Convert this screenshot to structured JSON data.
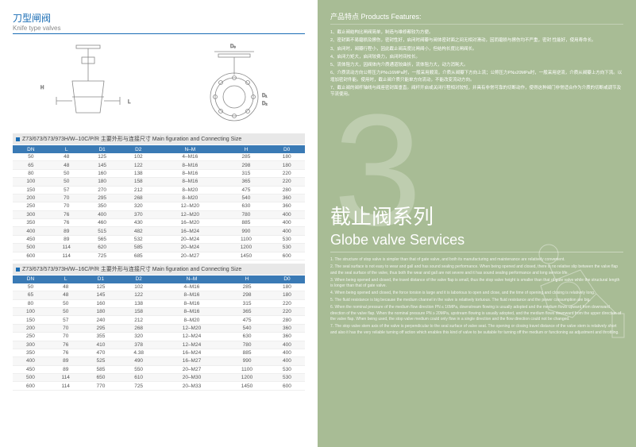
{
  "left": {
    "title_cn": "刀型闸阀",
    "title_en": "Knife type valves",
    "table1_title": "Z73/673/573/973H/W–10C/P/R 主要外形与连接尺寸 Main figuration and Connecting Size",
    "table2_title": "Z73/673/573/973H/W–16C/P/R 主要外形与连接尺寸 Main figuration and Connecting Size",
    "cols": [
      "DN",
      "L",
      "D1",
      "D2",
      "N–M",
      "H",
      "D0"
    ],
    "rows1": [
      [
        "50",
        "48",
        "125",
        "102",
        "4–M16",
        "285",
        "180"
      ],
      [
        "65",
        "48",
        "145",
        "122",
        "8–M16",
        "298",
        "180"
      ],
      [
        "80",
        "50",
        "160",
        "138",
        "8–M16",
        "315",
        "220"
      ],
      [
        "100",
        "50",
        "180",
        "158",
        "8–M16",
        "365",
        "220"
      ],
      [
        "150",
        "57",
        "270",
        "212",
        "8–M20",
        "475",
        "280"
      ],
      [
        "200",
        "70",
        "295",
        "268",
        "8–M20",
        "540",
        "360"
      ],
      [
        "250",
        "70",
        "350",
        "320",
        "12–M20",
        "630",
        "360"
      ],
      [
        "300",
        "76",
        "400",
        "370",
        "12–M20",
        "780",
        "400"
      ],
      [
        "350",
        "76",
        "460",
        "430",
        "16–M20",
        "885",
        "400"
      ],
      [
        "400",
        "89",
        "515",
        "482",
        "16–M24",
        "990",
        "400"
      ],
      [
        "450",
        "89",
        "565",
        "532",
        "20–M24",
        "1100",
        "530"
      ],
      [
        "500",
        "114",
        "620",
        "585",
        "20–M24",
        "1200",
        "530"
      ],
      [
        "600",
        "114",
        "725",
        "685",
        "20–M27",
        "1450",
        "600"
      ]
    ],
    "rows2": [
      [
        "50",
        "48",
        "125",
        "102",
        "4–M16",
        "285",
        "180"
      ],
      [
        "65",
        "48",
        "145",
        "122",
        "8–M16",
        "298",
        "180"
      ],
      [
        "80",
        "50",
        "160",
        "138",
        "8–M16",
        "315",
        "220"
      ],
      [
        "100",
        "50",
        "180",
        "158",
        "8–M16",
        "365",
        "220"
      ],
      [
        "150",
        "57",
        "240",
        "212",
        "8–M20",
        "475",
        "280"
      ],
      [
        "200",
        "70",
        "295",
        "268",
        "12–M20",
        "540",
        "360"
      ],
      [
        "250",
        "70",
        "355",
        "320",
        "12–M24",
        "630",
        "360"
      ],
      [
        "300",
        "76",
        "410",
        "378",
        "12–M24",
        "780",
        "400"
      ],
      [
        "350",
        "76",
        "470",
        "4.38",
        "16–M24",
        "885",
        "400"
      ],
      [
        "400",
        "89",
        "525",
        "490",
        "16–M27",
        "990",
        "400"
      ],
      [
        "450",
        "89",
        "585",
        "550",
        "20–M27",
        "1100",
        "530"
      ],
      [
        "500",
        "114",
        "650",
        "610",
        "20–M30",
        "1200",
        "530"
      ],
      [
        "600",
        "114",
        "770",
        "725",
        "20–M33",
        "1450",
        "600"
      ]
    ]
  },
  "right": {
    "features_title": "产品特点 Products Features:",
    "features": [
      "1、截止阀结构比闸阀简单，制造与维修都较为方便。",
      "2、密封面不易磨损及擦伤，密封性好，启闭时阀瓣与阀体密封面之间无相对滑动，因而磨损与擦伤均不严重，密封 性能好，使用寿命长。",
      "3、启闭时，阀瓣行程小，因此截止阀高度比闸阀小，但结构长度比闸阀长。",
      "4、启闭力矩大，启闭较费力，启闭时间校长。",
      "5、流体阻力大，因阀体内介质通道较曲折，流体阻力大，动力消耗大。",
      "6、介质流动方向公称压力PN≤16MPa时，一般采用顺流，介质从阀瓣下方向上流；公称压力PN≥20MPa时，一般采用逆流，介质从阀瓣上方向下流。以增加密封件能。使用时，截止阀介质只能单方向流动，不能改变流动方向。",
      "7、截止阀的阀杆轴线与阀座密封面垂直。阀杆开启或关闭行程相对较短，并具有非常可靠的切断动作，使得这种阀门非常适合作为介质的切断或调节及节流使用。"
    ],
    "big_num": "3",
    "hero_cn": "截止阀系列",
    "hero_en": "Globe valve Services",
    "desc": [
      "1. The structure of stop valve is simpler than that of gate valve, and both its manufacturing and maintenance are relatively convenient.",
      "2. The seal surface is not easy to wear and gall and has sound sealing performance. When being opened and closed, there is no relative slip between the valve flap and the seal surface of the valve, thus both the wear and gall are not severe and it has sound sealing performance and long service life.",
      "3. When being opened and closed, the travel distance of the valve flap is small, thus the stop valve height is smaller than that of gate valve while the structural length is longer than that of gate valve.",
      "4. When being opened and closed, the force torsion is large and it is laborious to open and close, and the time of opening and closing is relatively long.",
      "5. The fluid resistance is big because the medium channel in the valve is relatively tortuous. The fluid resistance and the power consumption are big.",
      "6. When the nominal pressure of the medium flow direction PN ≤ 16MPa, downstream flowing is usually adopted and the medium flows upward from downward direction of the valve flap. When the nominal pressure PN ≥ 20MPa, upstream flowing is usually adopted, and the medium flows downward from the upper direction of the valve flap. When being used, the stop valve medium could only flow in a single direction and the flow direction could not be changed.",
      "7. The stop valve stem axis of the valve is perpendicular to the seal surface of valve seat. The opening or closing travel distance of the valve stem is relatively short and also it has the very reliable turning off action which enables this kind of valve to be suitable for turning off the medium or functioning as adjustment and throttling."
    ]
  }
}
